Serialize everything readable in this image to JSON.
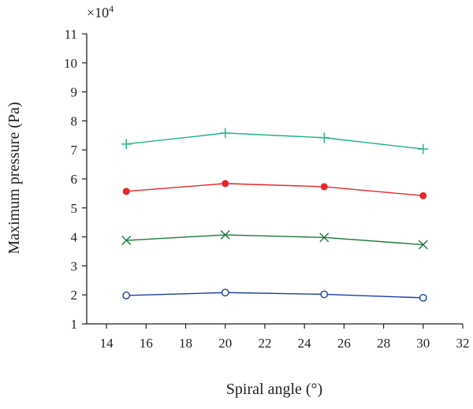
{
  "chart_data": {
    "type": "line",
    "xlabel": "Spiral angle (°)",
    "ylabel": "Maximum pressure (Pa)",
    "y_scale_prefix": "×10",
    "y_scale_exponent": "4",
    "xlim": [
      13,
      32
    ],
    "ylim": [
      1,
      11
    ],
    "x_ticks": [
      14,
      16,
      18,
      20,
      22,
      24,
      26,
      28,
      30,
      32
    ],
    "y_ticks": [
      1,
      2,
      3,
      4,
      5,
      6,
      7,
      8,
      9,
      10,
      11
    ],
    "x": [
      15,
      20,
      25,
      30
    ],
    "grid": false,
    "legend": "none",
    "series": [
      {
        "values": [
          7.2,
          7.58,
          7.42,
          7.03
        ],
        "color": "#1fb08a",
        "marker": "plus"
      },
      {
        "values": [
          5.57,
          5.84,
          5.73,
          5.42
        ],
        "color": "#e8262c",
        "marker": "filled-circle"
      },
      {
        "values": [
          3.88,
          4.07,
          3.98,
          3.73
        ],
        "color": "#1d7a3c",
        "marker": "x"
      },
      {
        "values": [
          1.98,
          2.08,
          2.02,
          1.9
        ],
        "color": "#1d3fa5",
        "marker": "open-circle"
      }
    ],
    "axis_color": "#231f20"
  }
}
